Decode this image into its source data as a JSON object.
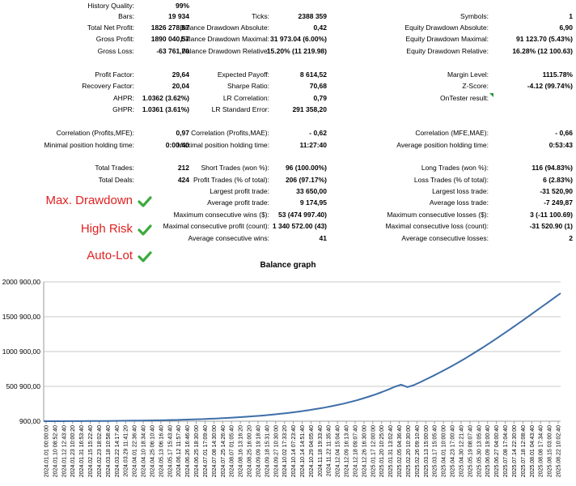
{
  "stats": {
    "history_quality": {
      "label": "History Quality:",
      "value": "99%"
    },
    "bars": {
      "label": "Bars:",
      "value": "19 934"
    },
    "total_net_profit": {
      "label": "Total Net Profit:",
      "value": "1826 278,87"
    },
    "gross_profit": {
      "label": "Gross Profit:",
      "value": "1890 040,57"
    },
    "gross_loss": {
      "label": "Gross Loss:",
      "value": "-63 761,70"
    },
    "ticks": {
      "label": "Ticks:",
      "value": "2388 359"
    },
    "balance_dd_abs": {
      "label": "Balance Drawdown Absolute:",
      "value": "0,42"
    },
    "balance_dd_max": {
      "label": "Balance Drawdown Maximal:",
      "value": "31 973.04 (6.00%)"
    },
    "balance_dd_rel": {
      "label": "Balance Drawdown Relative:",
      "value": "15.20% (11 219.98)"
    },
    "symbols": {
      "label": "Symbols:",
      "value": "1"
    },
    "equity_dd_abs": {
      "label": "Equity Drawdown Absolute:",
      "value": "6,90"
    },
    "equity_dd_max": {
      "label": "Equity Drawdown Maximal:",
      "value": "91 123.70 (5.43%)"
    },
    "equity_dd_rel": {
      "label": "Equity Drawdown Relative:",
      "value": "16.28% (12 100.63)"
    },
    "profit_factor": {
      "label": "Profit Factor:",
      "value": "29,64"
    },
    "recovery_factor": {
      "label": "Recovery Factor:",
      "value": "20,04"
    },
    "ahpr": {
      "label": "AHPR:",
      "value": "1.0362 (3.62%)"
    },
    "ghpr": {
      "label": "GHPR:",
      "value": "1.0361 (3.61%)"
    },
    "expected_payoff": {
      "label": "Expected Payoff:",
      "value": "8 614,52"
    },
    "sharpe_ratio": {
      "label": "Sharpe Ratio:",
      "value": "70,68"
    },
    "lr_correlation": {
      "label": "LR Correlation:",
      "value": "0,79"
    },
    "lr_std_error": {
      "label": "LR Standard Error:",
      "value": "291 358,20"
    },
    "margin_level": {
      "label": "Margin Level:",
      "value": "1115.78%"
    },
    "z_score": {
      "label": "Z-Score:",
      "value": "-4.12 (99.74%)"
    },
    "ontester_result": {
      "label": "OnTester result:",
      "value": ""
    },
    "corr_profits_mfe": {
      "label": "Correlation (Profits,MFE):",
      "value": "0,97"
    },
    "min_hold": {
      "label": "Minimal position holding time:",
      "value": "0:00:40"
    },
    "corr_profits_mae": {
      "label": "Correlation (Profits,MAE):",
      "value": "- 0,62"
    },
    "max_hold": {
      "label": "Maximal position holding time:",
      "value": "11:27:40"
    },
    "corr_mfe_mae": {
      "label": "Correlation (MFE,MAE):",
      "value": "- 0,66"
    },
    "avg_hold": {
      "label": "Average position holding time:",
      "value": "0:53:43"
    },
    "total_trades": {
      "label": "Total Trades:",
      "value": "212"
    },
    "total_deals": {
      "label": "Total Deals:",
      "value": "424"
    },
    "short_trades": {
      "label": "Short Trades (won %):",
      "value": "96 (100.00%)"
    },
    "profit_trades": {
      "label": "Profit Trades (% of total):",
      "value": "206 (97.17%)"
    },
    "largest_profit": {
      "label": "Largest profit trade:",
      "value": "33 650,00"
    },
    "avg_profit": {
      "label": "Average profit trade:",
      "value": "9 174,95"
    },
    "max_consec_wins": {
      "label": "Maximum consecutive wins ($):",
      "value": "53 (474 997.40)"
    },
    "maximal_consec_profit": {
      "label": "Maximal consecutive profit (count):",
      "value": "1 340 572.00 (43)"
    },
    "avg_consec_wins": {
      "label": "Average consecutive wins:",
      "value": "41"
    },
    "long_trades": {
      "label": "Long Trades (won %):",
      "value": "116 (94.83%)"
    },
    "loss_trades": {
      "label": "Loss Trades (% of total):",
      "value": "6 (2.83%)"
    },
    "largest_loss": {
      "label": "Largest loss trade:",
      "value": "-31 520,90"
    },
    "avg_loss": {
      "label": "Average loss trade:",
      "value": "-7 249,87"
    },
    "max_consec_losses": {
      "label": "Maximum consecutive losses ($):",
      "value": "3 (-11 100.69)"
    },
    "maximal_consec_loss": {
      "label": "Maximal consecutive loss (count):",
      "value": "-31 520.90 (1)"
    },
    "avg_consec_losses": {
      "label": "Average consecutive losses:",
      "value": "2"
    }
  },
  "flags": [
    {
      "text": "Max. Drawdown",
      "icon": "check-icon"
    },
    {
      "text": "High Risk",
      "icon": "check-icon"
    },
    {
      "text": "Auto-Lot",
      "icon": "check-icon"
    }
  ],
  "colors": {
    "flag_text": "#e02020",
    "check": "#3daa3d",
    "line": "#3d6ea8",
    "grid": "#c8c8c8"
  },
  "chart_data": {
    "type": "line",
    "title": "Balance graph",
    "xlabel": "",
    "ylabel": "",
    "ylim": [
      900,
      2000900
    ],
    "yticks": [
      900,
      500900,
      1000900,
      1500900,
      2000900
    ],
    "ytick_labels": [
      "900,00",
      "500 900,00",
      "1000 900,00",
      "1500 900,00",
      "2000 900,00"
    ],
    "xtick_labels": [
      "2024.01.01 00:00:00",
      "2024.01.10 08:52:40",
      "2024.01.12 12:43:40",
      "2024.01.23 10:00:20",
      "2024.01.31 16:53:40",
      "2024.02.15 15:22:40",
      "2024.02.23 18:02:40",
      "2024.03.18 10:58:40",
      "2024.03.22 14:17:40",
      "2024.03.29 11:41:20",
      "2024.04.01 22:36:40",
      "2024.04.10 18:34:40",
      "2024.04.25 06:10:40",
      "2024.05.13 06:16:40",
      "2024.05.17 15:43:40",
      "2024.06.12 11:57:40",
      "2024.06.26 16:46:40",
      "2024.06.25 18:30:00",
      "2024.07.01 17:09:40",
      "2024.07.08 14:30:00",
      "2024.07.25 14:26:40",
      "2024.08.07 01:05:40",
      "2024.08.16 13:16:20",
      "2024.08.25 16:00:20",
      "2024.09.09 19:18:40",
      "2024.09.18 15:31:40",
      "2024.09.27 10:30:00",
      "2024.10.02 17:33:20",
      "2024.10.14 07:23:40",
      "2024.10.14 14:51:40",
      "2024.10.29 04:05:40",
      "2024.11.18 19:33:40",
      "2024.11.22 11:35:40",
      "2024.12.04 15:04:40",
      "2024.12.09 16:13:40",
      "2024.12.18 09:07:40",
      "2024.12.26 16:30:00",
      "2025.01.17 12:00:00",
      "2025.01.20 10:25:00",
      "2025.01.31 13:02:40",
      "2025.02.05 04:36:40",
      "2025.02.20 10:30:00",
      "2025.02.26 09:10:40",
      "2025.03.13 15:00:00",
      "2025.03.17 15:05:40",
      "2025.04.01 10:00:00",
      "2025.04.23 17:00:40",
      "2025.04.30 12:21:40",
      "2025.05.19 08:07:40",
      "2025.05.30 13:05:40",
      "2025.06.09 19:00:40",
      "2025.06.27 04:00:40",
      "2025.07.08 17:04:40",
      "2025.07.14 22:30:00",
      "2025.07.18 12:08:40",
      "2025.08.01 04:43:40",
      "2025.08.08 17:34:40",
      "2025.08.15 03:00:40",
      "2025.08.22 10:02:40"
    ],
    "series": [
      {
        "values": [
          900,
          900,
          900,
          1200,
          1500,
          1800,
          2200,
          2700,
          3300,
          4000,
          4800,
          5600,
          6500,
          7500,
          8600,
          9800,
          11000,
          12500,
          14000,
          15800,
          17800,
          20000,
          22500,
          25200,
          28300,
          31700,
          35400,
          39500,
          44000,
          48900,
          54200,
          60000,
          66200,
          73000,
          80400,
          88300,
          97000,
          106400,
          116500,
          127400,
          139200,
          152000,
          165800,
          180700,
          196800,
          214300,
          233200,
          253700,
          276000,
          300200,
          326500,
          355000,
          386000,
          419600,
          456000,
          495500,
          525000,
          490000,
          520000,
          560000,
          605000,
          650000,
          697000,
          745000,
          795000,
          847000,
          900000,
          955000,
          1012000,
          1070000,
          1130000,
          1191000,
          1253000,
          1316000,
          1380000,
          1444000,
          1509000,
          1574000,
          1640000,
          1706000,
          1772000,
          1838000
        ]
      }
    ]
  }
}
